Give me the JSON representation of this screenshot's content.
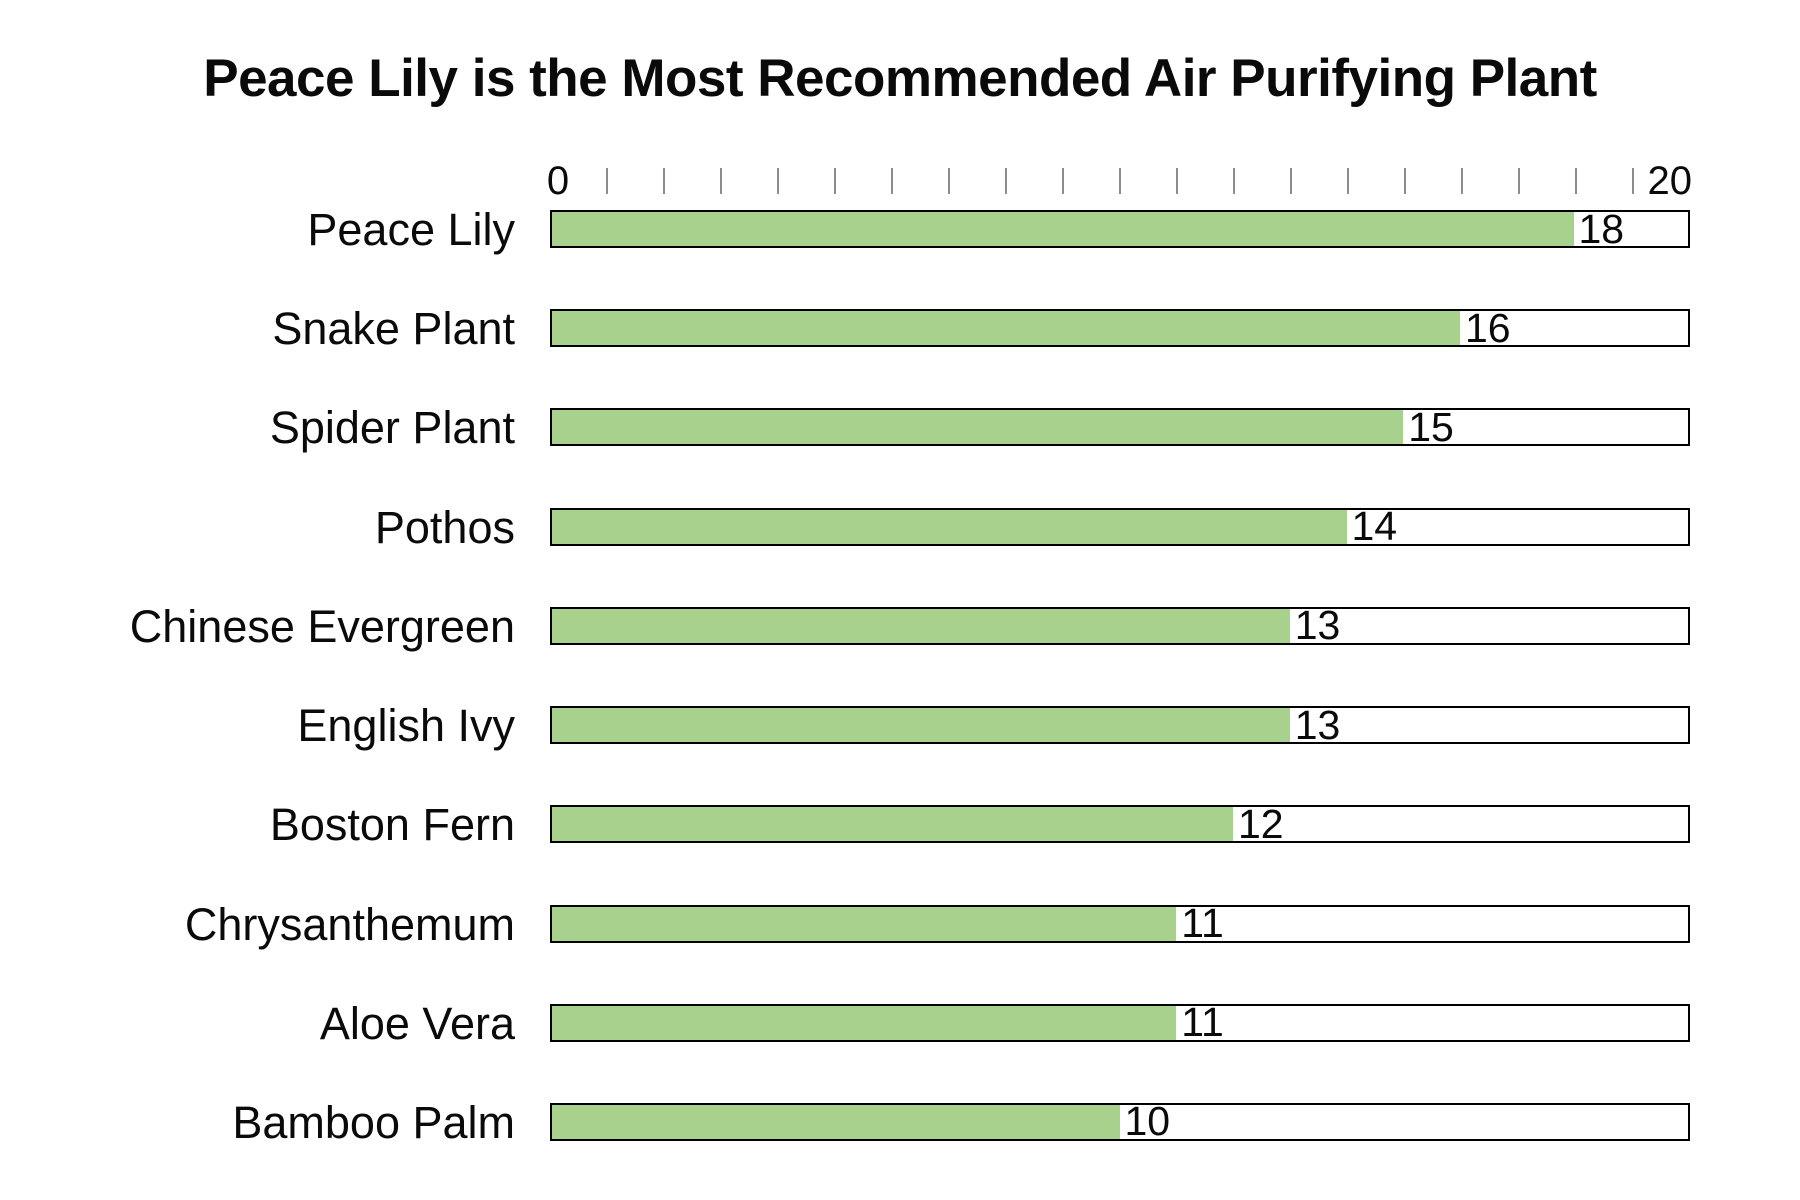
{
  "title": "Peace Lily is the Most Recommended Air Purifying Plant",
  "chart_data": {
    "type": "bar",
    "orientation": "horizontal",
    "title": "Peace Lily is the Most Recommended Air Purifying Plant",
    "categories": [
      "Peace Lily",
      "Snake Plant",
      "Spider Plant",
      "Pothos",
      "Chinese Evergreen",
      "English Ivy",
      "Boston Fern",
      "Chrysanthemum",
      "Aloe Vera",
      "Bamboo Palm"
    ],
    "values": [
      18,
      16,
      15,
      14,
      13,
      13,
      12,
      11,
      11,
      10
    ],
    "value_labels": [
      "18",
      "16",
      "15",
      "14",
      "13",
      "13",
      "12",
      "11",
      "11",
      "10"
    ],
    "xlabel": "",
    "ylabel": "",
    "x_axis": {
      "min": 0,
      "max": 20,
      "min_label": "0",
      "max_label": "20",
      "tick_interval": 1,
      "tick_units": [
        1,
        2,
        3,
        4,
        5,
        6,
        7,
        8,
        9,
        10,
        11,
        12,
        13,
        14,
        15,
        16,
        17,
        18,
        19
      ]
    },
    "grid": false,
    "legend": false,
    "colors": {
      "bar_fill": "#a9d18e",
      "bar_border": "#000000",
      "tick": "#8c8c8c",
      "text": "#0a0a0a",
      "background": "#ffffff"
    }
  }
}
